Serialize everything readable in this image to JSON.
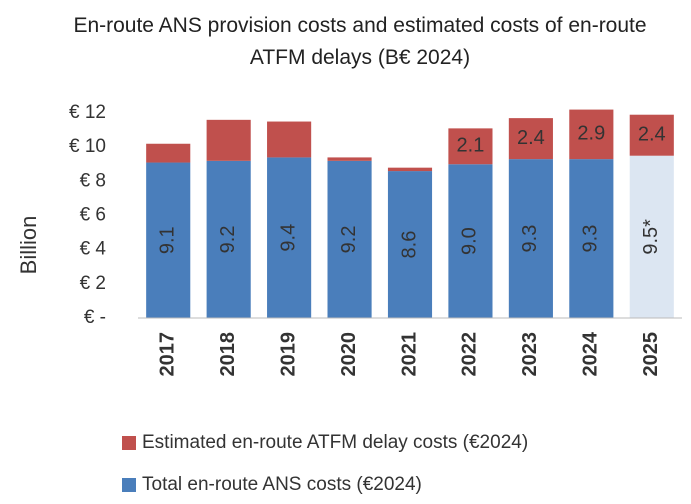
{
  "chart_data": {
    "type": "stacked_bar",
    "title": "En-route ANS provision costs and estimated costs of en-route ATFM delays (B€ 2024)",
    "ylabel": "Billion",
    "categories": [
      "2017",
      "2018",
      "2019",
      "2020",
      "2021",
      "2022",
      "2023",
      "2024",
      "2025"
    ],
    "series": [
      {
        "name": "Total en-route ANS costs (€2024)",
        "color": "#4a7ebb",
        "colors": [
          "#4a7ebb",
          "#4a7ebb",
          "#4a7ebb",
          "#4a7ebb",
          "#4a7ebb",
          "#4a7ebb",
          "#4a7ebb",
          "#4a7ebb",
          "#dce6f2"
        ],
        "values": [
          9.1,
          9.2,
          9.4,
          9.2,
          8.6,
          9.0,
          9.3,
          9.3,
          9.5
        ],
        "value_labels": [
          "9.1",
          "9.2",
          "9.4",
          "9.2",
          "8.6",
          "9.0",
          "9.3",
          "9.3",
          "9.5*"
        ]
      },
      {
        "name": "Estimated en-route ATFM delay costs (€2024)",
        "color": "#c0504d",
        "values": [
          1.1,
          2.4,
          2.1,
          0.2,
          0.2,
          2.1,
          2.4,
          2.9,
          2.4
        ],
        "value_labels": [
          null,
          null,
          null,
          null,
          null,
          "2.1",
          "2.4",
          "2.9",
          "2.4"
        ]
      }
    ],
    "ylim": [
      0,
      12
    ],
    "yticks": [
      {
        "value": 0,
        "label": "€ -"
      },
      {
        "value": 2,
        "label": "€ 2"
      },
      {
        "value": 4,
        "label": "€ 4"
      },
      {
        "value": 6,
        "label": "€ 6"
      },
      {
        "value": 8,
        "label": "€ 8"
      },
      {
        "value": 10,
        "label": "€ 10"
      },
      {
        "value": 12,
        "label": "€ 12"
      }
    ],
    "legend": "bottom"
  }
}
